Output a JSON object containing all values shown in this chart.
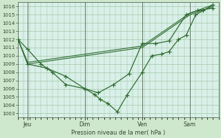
{
  "background_color": "#cde8cd",
  "plot_bg_color": "#d8f0e8",
  "grid_color": "#99bb99",
  "line_color": "#2d6a2d",
  "xlabel": "Pression niveau de la mer( hPa )",
  "ylim": [
    1002.5,
    1016.5
  ],
  "yticks": [
    1003,
    1004,
    1005,
    1006,
    1007,
    1008,
    1009,
    1010,
    1011,
    1012,
    1013,
    1014,
    1015,
    1016
  ],
  "xtick_labels": [
    "Jeu",
    "Dim",
    "Ven",
    "Sam"
  ],
  "xtick_positions": [
    0.5,
    3.5,
    6.5,
    9.0
  ],
  "vline_positions": [
    0.5,
    3.5,
    6.5,
    9.0
  ],
  "xlim": [
    0.0,
    10.5
  ],
  "series1_x": [
    0.0,
    0.5,
    1.2,
    1.8,
    2.5,
    3.5,
    4.0,
    4.3,
    4.7,
    5.2,
    5.7,
    6.5,
    7.0,
    7.5,
    7.9,
    8.4,
    8.8,
    9.3,
    9.7,
    10.2
  ],
  "series1_y": [
    1012,
    1010.8,
    1009.0,
    1008.0,
    1006.5,
    1006.0,
    1005.3,
    1004.7,
    1004.2,
    1003.2,
    1005.2,
    1008.0,
    1010.0,
    1010.2,
    1010.5,
    1012.0,
    1012.5,
    1015.0,
    1015.5,
    1016.2
  ],
  "series2_x": [
    0.0,
    0.5,
    1.5,
    2.5,
    3.5,
    4.2,
    5.0,
    5.8,
    6.5,
    7.2,
    7.9,
    8.8,
    9.4,
    10.2
  ],
  "series2_y": [
    1012,
    1009.0,
    1008.5,
    1007.5,
    1006.0,
    1005.5,
    1006.5,
    1007.8,
    1011.5,
    1011.5,
    1011.8,
    1015.0,
    1015.5,
    1015.8
  ],
  "series3_x": [
    0.0,
    0.5,
    3.5,
    6.5,
    9.0,
    10.2
  ],
  "series3_y": [
    1012,
    1009.0,
    1010.0,
    1011.0,
    1015.0,
    1016.0
  ],
  "series4_x": [
    0.0,
    0.5,
    3.5,
    6.5,
    9.0,
    10.2
  ],
  "series4_y": [
    1012,
    1009.2,
    1010.2,
    1011.2,
    1015.2,
    1016.2
  ]
}
